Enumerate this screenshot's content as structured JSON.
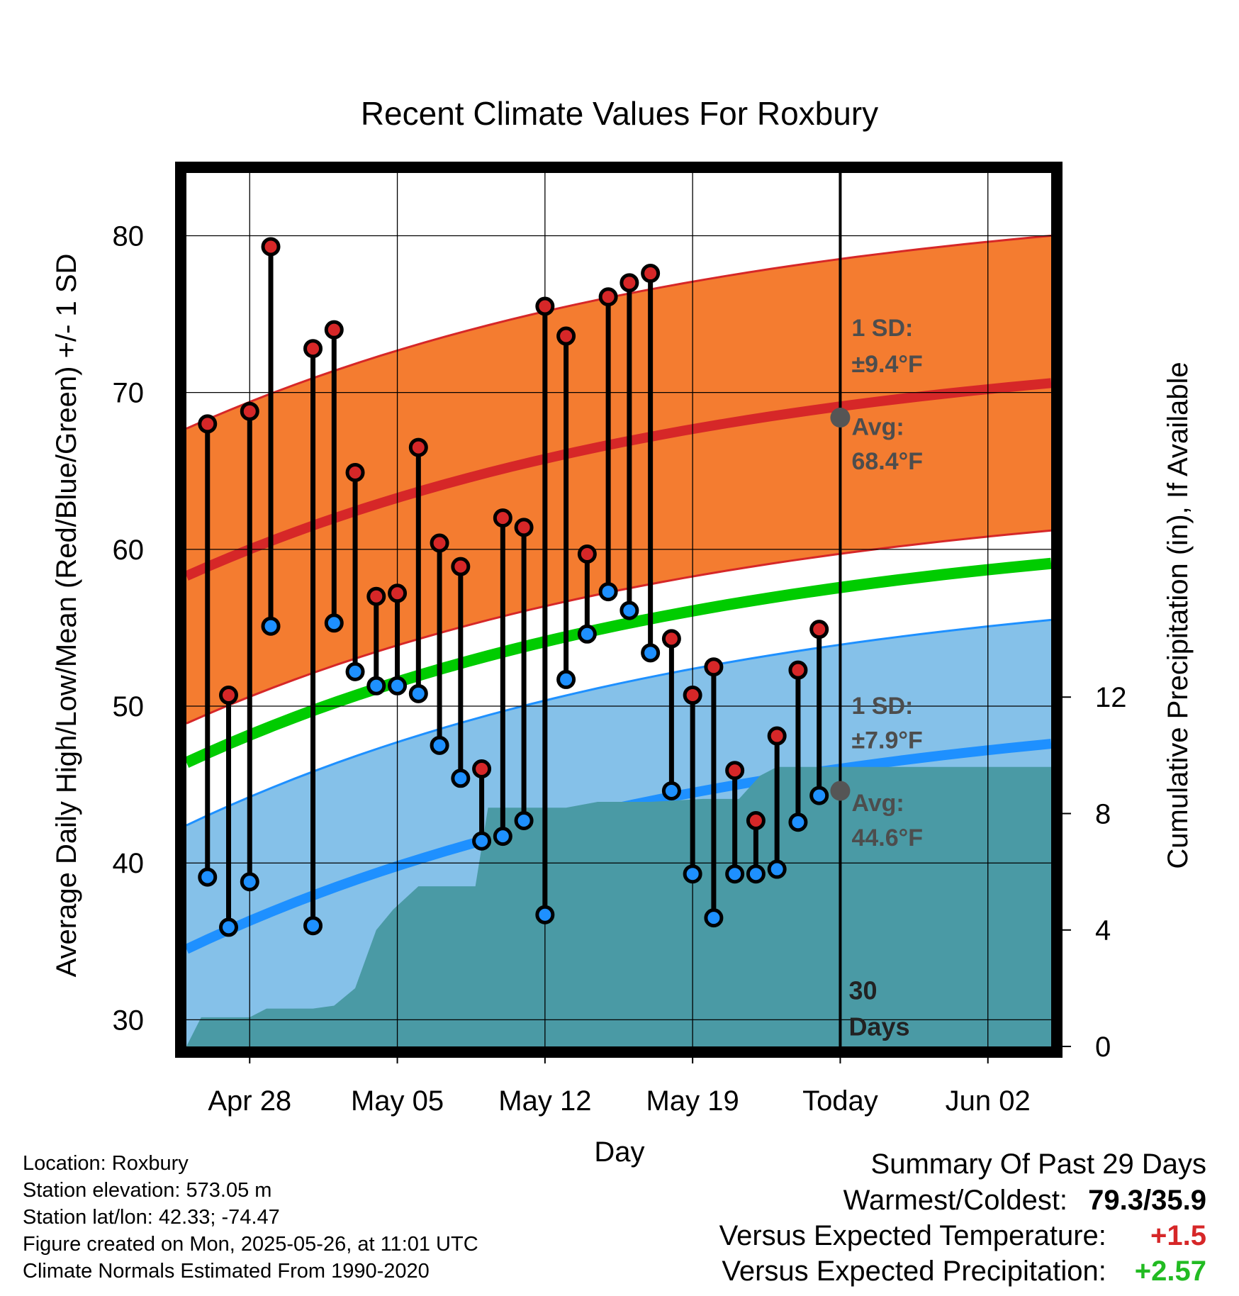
{
  "chart_data": {
    "type": "line",
    "title": "Recent Climate Values For Roxbury",
    "xlabel": "Day",
    "ylabel": "Average Daily High/Low/Mean (Red/Blue/Green) +/- 1 SD",
    "y2label": "Cumulative Precipitation (in), If Available",
    "x_ticks": [
      "Apr 28",
      "May 05",
      "May 12",
      "May 19",
      "Today",
      "Jun 02"
    ],
    "x_tick_days": [
      3,
      10,
      17,
      24,
      31,
      38
    ],
    "xlim_days": [
      0,
      41
    ],
    "ylim": [
      28.3,
      84
    ],
    "y_ticks": [
      30,
      40,
      50,
      60,
      70,
      80
    ],
    "y2lim": [
      0,
      30
    ],
    "y2_ticks": [
      0,
      4,
      8,
      12
    ],
    "grid": true,
    "normals": {
      "high_avg": {
        "start": 58.3,
        "end": 70.6
      },
      "high_sd": 9.4,
      "low_avg": {
        "start": 34.5,
        "end": 47.6
      },
      "low_sd": 7.9,
      "mean_avg": {
        "start": 46.4,
        "end": 59.1
      }
    },
    "daily": {
      "days": [
        1,
        2,
        3,
        4,
        6,
        7,
        8,
        9,
        10,
        11,
        12,
        13,
        14,
        15,
        16,
        17,
        18,
        19,
        20,
        21,
        22,
        23,
        24,
        25,
        26,
        27,
        28,
        29,
        30
      ],
      "highs": [
        68.0,
        50.7,
        68.8,
        79.3,
        72.8,
        74.0,
        64.9,
        57.0,
        57.2,
        66.5,
        60.4,
        58.9,
        46.0,
        62.0,
        61.4,
        75.5,
        73.6,
        59.7,
        76.1,
        77.0,
        77.6,
        54.3,
        50.7,
        52.5,
        45.9,
        42.7,
        48.1,
        52.3,
        54.9
      ],
      "lows": [
        39.1,
        35.9,
        38.8,
        55.1,
        36.0,
        55.3,
        52.2,
        51.3,
        51.3,
        50.8,
        47.5,
        45.4,
        41.4,
        41.7,
        42.7,
        36.7,
        51.7,
        54.6,
        57.3,
        56.1,
        53.4,
        44.6,
        39.3,
        36.5,
        39.3,
        39.3,
        39.6,
        42.6,
        44.3
      ]
    },
    "cumulative_precip": [
      [
        0,
        0
      ],
      [
        0.7,
        1.0
      ],
      [
        3,
        1.0
      ],
      [
        3.8,
        1.3
      ],
      [
        6,
        1.3
      ],
      [
        7,
        1.4
      ],
      [
        8,
        2.0
      ],
      [
        9,
        4.0
      ],
      [
        9.8,
        4.7
      ],
      [
        11,
        5.5
      ],
      [
        12.5,
        5.5
      ],
      [
        13.7,
        5.5
      ],
      [
        14.3,
        8.2
      ],
      [
        18,
        8.2
      ],
      [
        19.5,
        8.4
      ],
      [
        22,
        8.4
      ],
      [
        24.5,
        8.5
      ],
      [
        26.2,
        8.5
      ],
      [
        27.2,
        9.3
      ],
      [
        28,
        9.6
      ],
      [
        30,
        9.6
      ],
      [
        41,
        9.6
      ]
    ],
    "annotations": {
      "high_sd_label": "1 SD:",
      "high_sd_value": "±9.4°F",
      "high_avg_label": "Avg:",
      "high_avg_value": "68.4°F",
      "high_avg_today": 68.4,
      "low_sd_label": "1 SD:",
      "low_sd_value": "±7.9°F",
      "low_avg_label": "Avg:",
      "low_avg_value": "44.6°F",
      "low_avg_today": 44.6,
      "window_days": "30",
      "window_unit": "Days"
    },
    "colors": {
      "high_band": "#f47c30",
      "high_line": "#d62728",
      "low_band": "#85c1e9",
      "low_line": "#1e90ff",
      "mean_line": "#00cc00",
      "precip_fill": "#4a9aa5",
      "high_dot": "#d62728",
      "low_dot": "#1e90ff"
    }
  },
  "info": {
    "location": "Location: Roxbury",
    "elevation": "Station elevation: 573.05 m",
    "latlon": "Station lat/lon: 42.33; -74.47",
    "created": "Figure created on Mon, 2025-05-26, at 11:01 UTC",
    "normals": "Climate Normals Estimated From 1990-2020"
  },
  "summary": {
    "heading": "Summary Of Past 29 Days",
    "warmest_label": "Warmest/Coldest:",
    "warmest_value": "79.3/35.9",
    "temp_label": "Versus Expected Temperature:",
    "temp_value": "+1.5",
    "temp_color": "#d62728",
    "precip_label": "Versus Expected Precipitation:",
    "precip_value": "+2.57",
    "precip_color": "#22bb22"
  }
}
